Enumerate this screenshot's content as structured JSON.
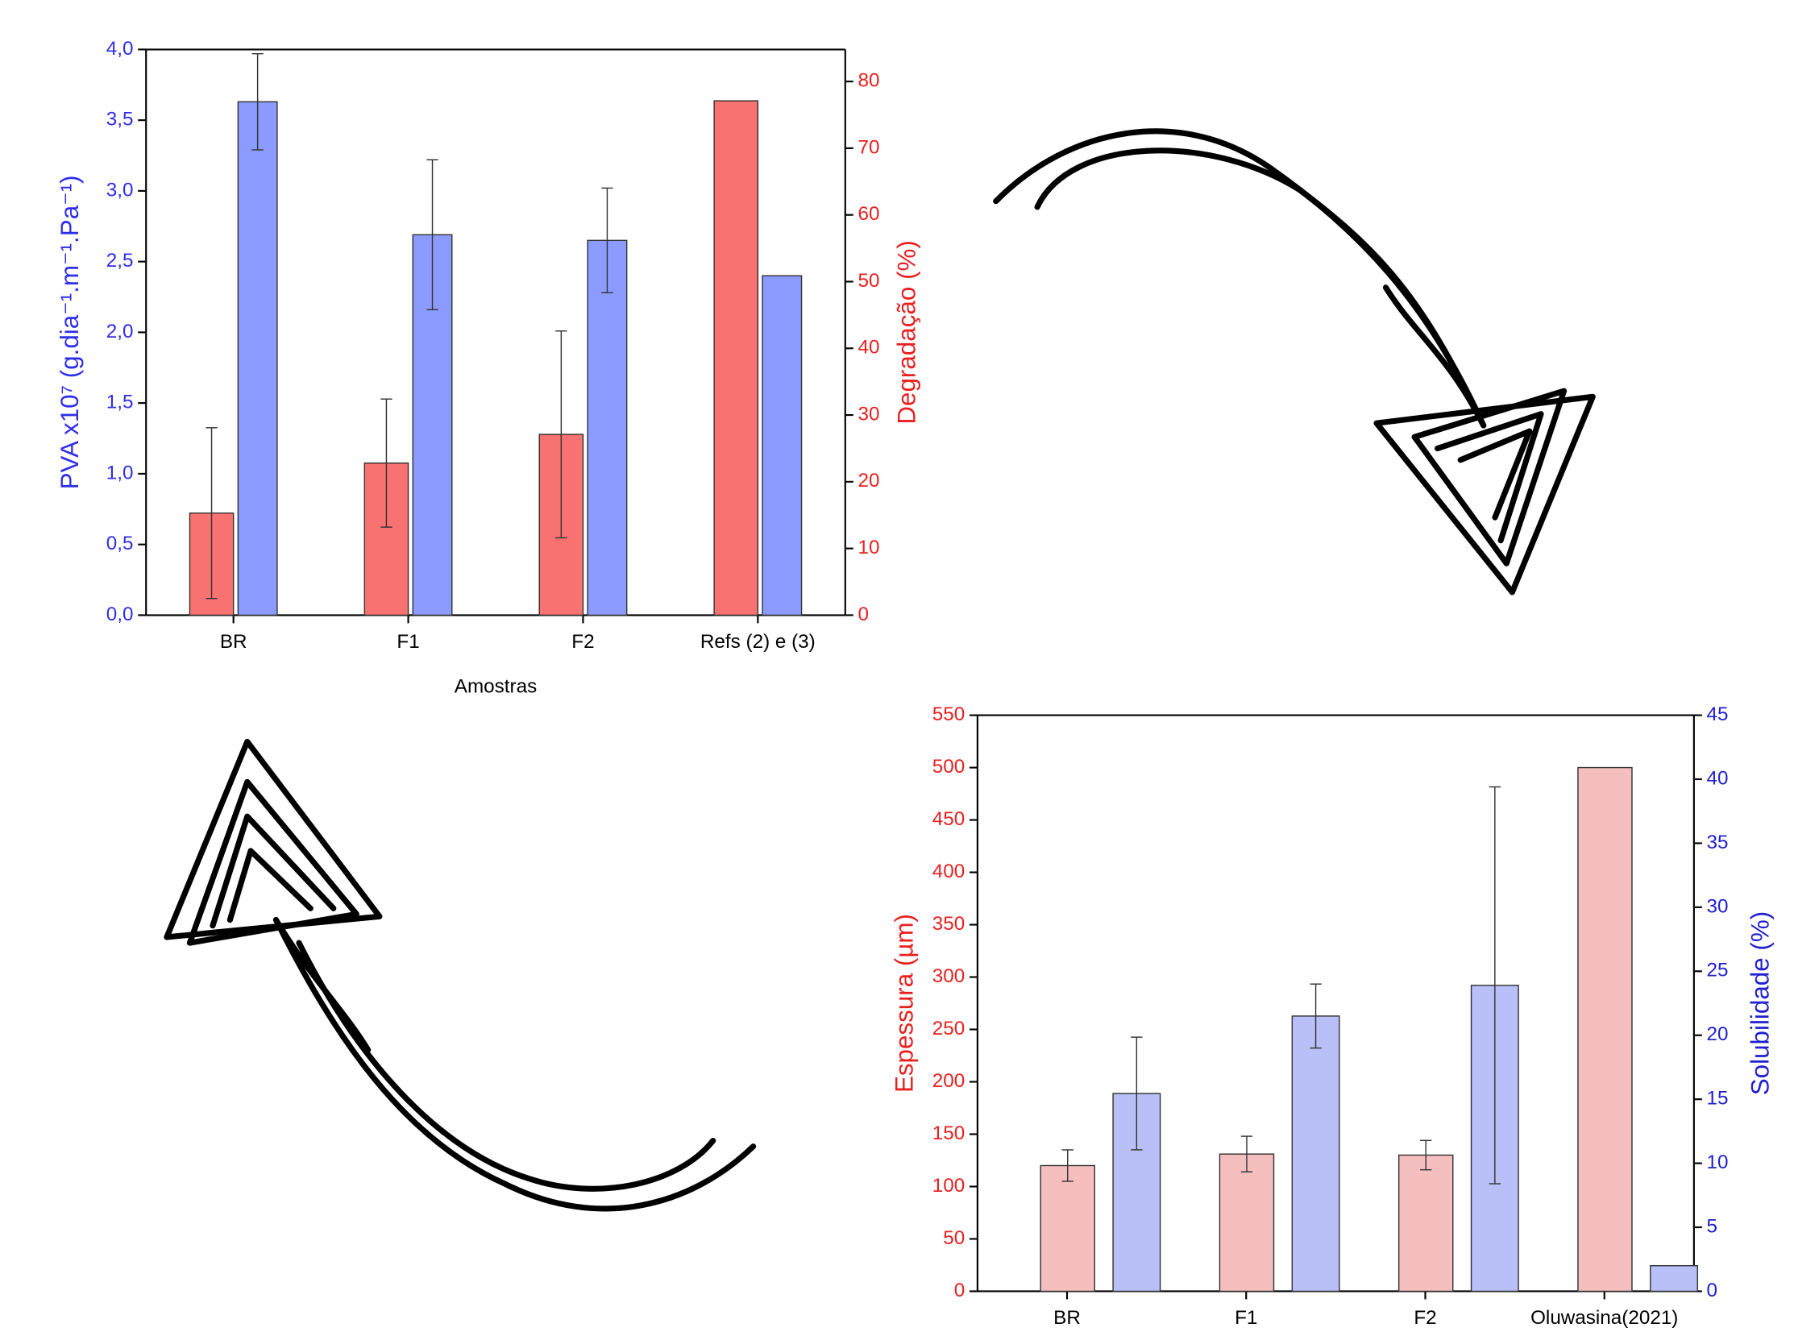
{
  "chart_data": [
    {
      "type": "bar",
      "y_label": "PVA x10⁷ (g.dia⁻¹.m⁻¹.Pa⁻¹)",
      "y2_label": "Degradação (%)",
      "x_label": "Amostras",
      "categories": [
        "BR",
        "F1",
        "F2",
        "Refs (2) e (3)"
      ],
      "axis_colors": {
        "y": "#2f2fe8",
        "y2": "#e82020"
      },
      "series": [
        {
          "color": "#f87272",
          "axis": "y2",
          "values": [
            15.3,
            22.8,
            27.1,
            77.1
          ],
          "errors": [
            12.8,
            9.6,
            15.5,
            null
          ]
        },
        {
          "color": "#8c9bff",
          "axis": "y",
          "values": [
            3.63,
            2.69,
            2.65,
            2.4
          ],
          "errors": [
            0.34,
            0.53,
            0.37,
            null
          ]
        }
      ],
      "ylim": [
        0,
        4.0
      ],
      "yticks": [
        {
          "value": 0,
          "label": "0,0"
        },
        {
          "value": 0.5,
          "label": "0,5"
        },
        {
          "value": 1.0,
          "label": "1,0"
        },
        {
          "value": 1.5,
          "label": "1,5"
        },
        {
          "value": 2.0,
          "label": "2,0"
        },
        {
          "value": 2.5,
          "label": "2,5"
        },
        {
          "value": 3.0,
          "label": "3,0"
        },
        {
          "value": 3.5,
          "label": "3,5"
        },
        {
          "value": 4.0,
          "label": "4,0"
        }
      ],
      "y2lim": [
        0,
        84.8
      ],
      "y2ticks": [
        0,
        10,
        20,
        30,
        40,
        50,
        60,
        70,
        80
      ]
    },
    {
      "type": "bar",
      "y_label": "Espessura (µm)",
      "y2_label": "Solubilidade (%)",
      "categories": [
        "BR",
        "F1",
        "F2",
        "Oluwasina(2021)"
      ],
      "axis_colors": {
        "y": "#e82020",
        "y2": "#2020d0"
      },
      "series": [
        {
          "color": "#f6bfbf",
          "axis": "y",
          "values": [
            120,
            131,
            130,
            500
          ],
          "errors": [
            15,
            17,
            14,
            null
          ]
        },
        {
          "color": "#b8c0f7",
          "axis": "y2",
          "values": [
            15.45,
            21.5,
            23.9,
            2.0
          ],
          "errors": [
            4.4,
            2.5,
            15.5,
            null
          ]
        }
      ],
      "ylim": [
        0,
        550
      ],
      "yticks": [
        0,
        50,
        100,
        150,
        200,
        250,
        300,
        350,
        400,
        450,
        500,
        550
      ],
      "y2lim": [
        0,
        45
      ],
      "y2ticks": [
        0,
        5,
        10,
        15,
        20,
        25,
        30,
        35,
        40,
        45
      ]
    }
  ]
}
